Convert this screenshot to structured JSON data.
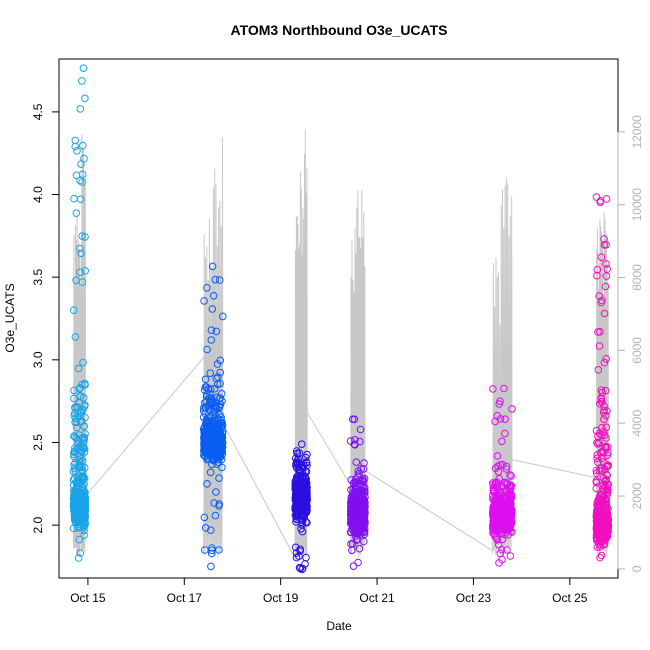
{
  "chart_data": {
    "type": "scatter",
    "title": "ATOM3 Northbound O3e_UCATS",
    "xlabel": "Date",
    "ylabel": "O3e_UCATS",
    "x_ticks": [
      {
        "day": 15,
        "label": "Oct 15"
      },
      {
        "day": 17,
        "label": "Oct 17"
      },
      {
        "day": 19,
        "label": "Oct 19"
      },
      {
        "day": 21,
        "label": "Oct 21"
      },
      {
        "day": 23,
        "label": "Oct 23"
      },
      {
        "day": 25,
        "label": "Oct 25"
      }
    ],
    "xlim": [
      14.4,
      26.0
    ],
    "ylim": [
      1.68,
      4.82
    ],
    "y_ticks": [
      2.0,
      2.5,
      3.0,
      3.5,
      4.0,
      4.5
    ],
    "y_tick_labels": [
      "2.0",
      "2.5",
      "3.0",
      "3.5",
      "4.0",
      "4.5"
    ],
    "y2lim": [
      -250,
      14000
    ],
    "y2_ticks": [
      0,
      2000,
      4000,
      6000,
      8000,
      10000,
      12000
    ],
    "y2_tick_labels": [
      "0",
      "2000",
      "4000",
      "6000",
      "8000",
      "10000",
      "12000"
    ],
    "grid": false,
    "colors": {
      "flight_1": "#1aa3e8",
      "flight_2": "#0a5ef0",
      "flight_3": "#2a10e0",
      "flight_4": "#8010f0",
      "flight_5": "#dd10f0",
      "flight_6": "#f010c0",
      "altitude_line": "#c8c8c8"
    },
    "flights": [
      {
        "x_min": 14.7,
        "x_max": 14.95,
        "y_lo": 1.75,
        "y_dense": 2.1,
        "y_hi": 4.78,
        "spread": 0.55,
        "alt_peaks": [
          10100,
          9200,
          12500
        ],
        "alt_end": 2000
      },
      {
        "x_min": 17.4,
        "x_max": 17.8,
        "y_lo": 1.74,
        "y_dense": 2.5,
        "y_hi": 3.63,
        "spread": 0.3,
        "alt_peaks": [
          10000,
          10500,
          11000,
          11500,
          12500
        ],
        "alt_end": 4000
      },
      {
        "x_min": 19.3,
        "x_max": 19.55,
        "y_lo": 1.7,
        "y_dense": 2.15,
        "y_hi": 2.5,
        "spread": 0.2,
        "alt_peaks": [
          10600,
          11000,
          12300
        ],
        "alt_end": 4000
      },
      {
        "x_min": 20.45,
        "x_max": 20.75,
        "y_lo": 1.72,
        "y_dense": 2.05,
        "y_hi": 2.67,
        "spread": 0.18,
        "alt_peaks": [
          9700,
          10100,
          10700,
          11000
        ],
        "alt_end": 2800
      },
      {
        "x_min": 23.4,
        "x_max": 23.8,
        "y_lo": 1.75,
        "y_dense": 2.05,
        "y_hi": 2.9,
        "spread": 0.22,
        "alt_peaks": [
          9000,
          8500,
          11500,
          11800,
          12000
        ],
        "alt_end": 3000
      },
      {
        "x_min": 25.55,
        "x_max": 25.8,
        "y_lo": 1.75,
        "y_dense": 2.0,
        "y_hi": 4.0,
        "spread": 0.55,
        "alt_peaks": [
          10100,
          9800
        ],
        "alt_end": 2100
      }
    ],
    "transit_alt": [
      {
        "x": 14.95,
        "alt": 2000
      },
      {
        "x": 17.4,
        "alt": 5800
      },
      {
        "x": 17.8,
        "alt": 4000
      },
      {
        "x": 19.3,
        "alt": 300
      },
      {
        "x": 19.55,
        "alt": 4300
      },
      {
        "x": 20.45,
        "alt": 2300
      },
      {
        "x": 20.75,
        "alt": 2700
      },
      {
        "x": 23.4,
        "alt": 500
      },
      {
        "x": 23.8,
        "alt": 3000
      },
      {
        "x": 25.55,
        "alt": 2500
      }
    ]
  }
}
